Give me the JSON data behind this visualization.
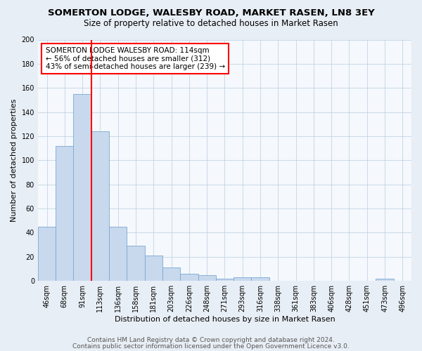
{
  "title": "SOMERTON LODGE, WALESBY ROAD, MARKET RASEN, LN8 3EY",
  "subtitle": "Size of property relative to detached houses in Market Rasen",
  "xlabel": "Distribution of detached houses by size in Market Rasen",
  "ylabel": "Number of detached properties",
  "categories": [
    "46sqm",
    "68sqm",
    "91sqm",
    "113sqm",
    "136sqm",
    "158sqm",
    "181sqm",
    "203sqm",
    "226sqm",
    "248sqm",
    "271sqm",
    "293sqm",
    "316sqm",
    "338sqm",
    "361sqm",
    "383sqm",
    "406sqm",
    "428sqm",
    "451sqm",
    "473sqm",
    "496sqm"
  ],
  "values": [
    45,
    112,
    155,
    124,
    45,
    29,
    21,
    11,
    6,
    5,
    2,
    3,
    3,
    0,
    0,
    0,
    0,
    0,
    0,
    2,
    0
  ],
  "bar_color": "#c8d9ed",
  "bar_edge_color": "#7ba7d4",
  "red_line_index": 3,
  "annotation_text": "SOMERTON LODGE WALESBY ROAD: 114sqm\n← 56% of detached houses are smaller (312)\n43% of semi-detached houses are larger (239) →",
  "annotation_box_color": "white",
  "annotation_box_edge": "red",
  "ylim": [
    0,
    200
  ],
  "yticks": [
    0,
    20,
    40,
    60,
    80,
    100,
    120,
    140,
    160,
    180,
    200
  ],
  "footer_line1": "Contains HM Land Registry data © Crown copyright and database right 2024.",
  "footer_line2": "Contains public sector information licensed under the Open Government Licence v3.0.",
  "bg_color": "#e8eef5",
  "plot_bg_color": "#f5f8fc",
  "title_fontsize": 9.5,
  "subtitle_fontsize": 8.5,
  "axis_label_fontsize": 8,
  "tick_fontsize": 7,
  "annotation_fontsize": 7.5,
  "footer_fontsize": 6.5
}
